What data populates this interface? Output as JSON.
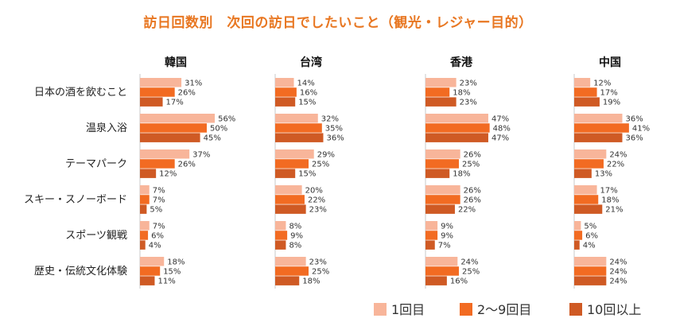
{
  "title": "訪日回数別　次回の訪日でしたいこと（観光・レジャー目的）",
  "chart_data": {
    "type": "bar",
    "orientation": "horizontal",
    "title": "訪日回数別　次回の訪日でしたいこと（観光・レジャー目的）",
    "unit": "%",
    "categories": [
      "日本の酒を飲むこと",
      "温泉入浴",
      "テーマパーク",
      "スキー・スノーボード",
      "スポーツ観戦",
      "歴史・伝統文化体験"
    ],
    "legend_position": "bottom-right",
    "series_meta": [
      {
        "name": "1回目",
        "color": "#f8b59a"
      },
      {
        "name": "2～9回目",
        "color": "#f26b22"
      },
      {
        "name": "10回以上",
        "color": "#cf5a24"
      }
    ],
    "panels": [
      {
        "country": "韓国",
        "xlim": [
          0,
          60
        ],
        "series": [
          {
            "name": "1回目",
            "values": [
              31,
              56,
              37,
              7,
              7,
              18
            ]
          },
          {
            "name": "2～9回目",
            "values": [
              26,
              50,
              26,
              7,
              6,
              15
            ]
          },
          {
            "name": "10回以上",
            "values": [
              17,
              45,
              12,
              5,
              4,
              11
            ]
          }
        ]
      },
      {
        "country": "台湾",
        "xlim": [
          0,
          60
        ],
        "series": [
          {
            "name": "1回目",
            "values": [
              14,
              32,
              29,
              20,
              8,
              23
            ]
          },
          {
            "name": "2～9回目",
            "values": [
              16,
              35,
              25,
              22,
              9,
              25
            ]
          },
          {
            "name": "10回以上",
            "values": [
              15,
              36,
              15,
              23,
              8,
              18
            ]
          }
        ]
      },
      {
        "country": "香港",
        "xlim": [
          0,
          60
        ],
        "series": [
          {
            "name": "1回目",
            "values": [
              23,
              47,
              26,
              26,
              9,
              24
            ]
          },
          {
            "name": "2～9回目",
            "values": [
              18,
              48,
              25,
              26,
              9,
              25
            ]
          },
          {
            "name": "10回以上",
            "values": [
              23,
              47,
              18,
              22,
              7,
              16
            ]
          }
        ]
      },
      {
        "country": "中国",
        "xlim": [
          0,
          60
        ],
        "series": [
          {
            "name": "1回目",
            "values": [
              12,
              36,
              24,
              17,
              5,
              24
            ]
          },
          {
            "name": "2～9回目",
            "values": [
              17,
              41,
              22,
              18,
              6,
              24
            ]
          },
          {
            "name": "10回以上",
            "values": [
              19,
              36,
              13,
              21,
              4,
              24
            ]
          }
        ]
      }
    ]
  }
}
